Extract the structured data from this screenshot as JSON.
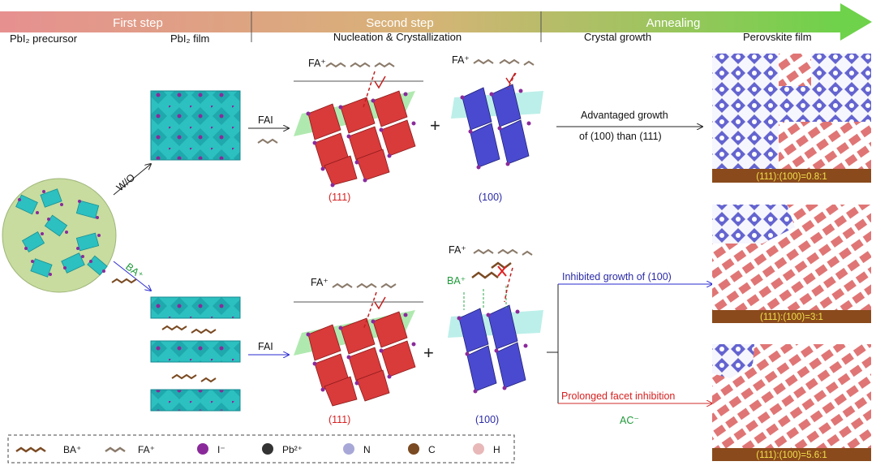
{
  "header": {
    "steps": [
      "First step",
      "Second step",
      "Annealing"
    ],
    "columns": [
      "PbI₂ precursor",
      "PbI₂ film",
      "Nucleation & Crystallization",
      "Crystal growth",
      "Perovskite film"
    ]
  },
  "labels": {
    "wo": "W/O",
    "ba_plus": "BA⁺",
    "fai_top": "FAI",
    "fai_bottom": "FAI",
    "fa_plus_1": "FA⁺",
    "fa_plus_2": "FA⁺",
    "fa_plus_3": "FA⁺",
    "fa_plus_4": "FA⁺",
    "ba_plus_2": "BA⁺",
    "plus_top": "+",
    "plus_bottom": "+",
    "facet_111_top": "(111)",
    "facet_100_top": "(100)",
    "facet_111_bottom": "(111)",
    "facet_100_bottom": "(100)"
  },
  "growth": {
    "top_line1": "Advantaged growth",
    "top_line2": "of (100) than (111)",
    "mid": "Inhibited growth of (100)",
    "bottom": "Prolonged facet inhibition",
    "ac": "AC⁻"
  },
  "ratios": {
    "top": "(111):(100)=0.8:1",
    "mid": "(111):(100)=3:1",
    "bottom": "(111):(100)=5.6:1"
  },
  "legend": [
    {
      "label": "BA⁺",
      "icon": "ba-molecule-icon"
    },
    {
      "label": "FA⁺",
      "icon": "fa-molecule-icon"
    },
    {
      "label": "I⁻",
      "icon": "iodide-atom-icon",
      "color": "#8a2a9a"
    },
    {
      "label": "Pb²⁺",
      "icon": "lead-atom-icon",
      "color": "#333333"
    },
    {
      "label": "N",
      "icon": "nitrogen-atom-icon",
      "color": "#a8a8d8"
    },
    {
      "label": "C",
      "icon": "carbon-atom-icon",
      "color": "#7a4a22"
    },
    {
      "label": "H",
      "icon": "hydrogen-atom-icon",
      "color": "#e8b8b8"
    }
  ],
  "colors": {
    "arrow_start": "#e07b7b",
    "arrow_end": "#5bd04a",
    "octahedron_teal": "#1fb8b8",
    "facet_111": "#d93a3a",
    "facet_100": "#4a4ad0"
  }
}
